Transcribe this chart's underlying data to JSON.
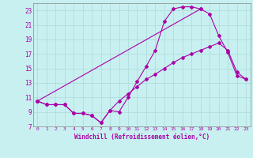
{
  "xlabel": "Windchill (Refroidissement éolien,°C)",
  "background_color": "#c8f0f0",
  "grid_color": "#b0dede",
  "line_color": "#aa00aa",
  "spine_color": "#888888",
  "xlim": [
    -0.5,
    23.5
  ],
  "ylim": [
    7,
    24
  ],
  "xticks": [
    0,
    1,
    2,
    3,
    4,
    5,
    6,
    7,
    8,
    9,
    10,
    11,
    12,
    13,
    14,
    15,
    16,
    17,
    18,
    19,
    20,
    21,
    22,
    23
  ],
  "yticks": [
    7,
    9,
    11,
    13,
    15,
    17,
    19,
    21,
    23
  ],
  "curve_upper_x": [
    0,
    1,
    2,
    3,
    4,
    5,
    6,
    7,
    8,
    9,
    10,
    11,
    12,
    13,
    14,
    15,
    16,
    17,
    18
  ],
  "curve_upper_y": [
    10.5,
    10.0,
    10.0,
    10.0,
    8.8,
    8.8,
    8.5,
    7.5,
    9.2,
    9.0,
    11.0,
    13.2,
    15.3,
    17.5,
    21.5,
    23.2,
    23.5,
    23.5,
    23.2
  ],
  "curve_right_x": [
    0,
    18,
    19,
    20,
    21,
    22,
    23
  ],
  "curve_right_y": [
    10.5,
    23.2,
    22.5,
    19.5,
    17.2,
    14.0,
    13.5
  ],
  "curve_lower_x": [
    0,
    1,
    2,
    3,
    4,
    5,
    6,
    7,
    8,
    9,
    10,
    11,
    12,
    13,
    14,
    15,
    16,
    17,
    18,
    19,
    20,
    21,
    22,
    23
  ],
  "curve_lower_y": [
    10.5,
    10.0,
    10.0,
    10.0,
    8.8,
    8.8,
    8.5,
    7.5,
    9.2,
    10.5,
    11.5,
    12.5,
    13.5,
    14.2,
    15.0,
    15.8,
    16.5,
    17.0,
    17.5,
    18.0,
    18.5,
    17.5,
    14.5,
    13.5
  ]
}
